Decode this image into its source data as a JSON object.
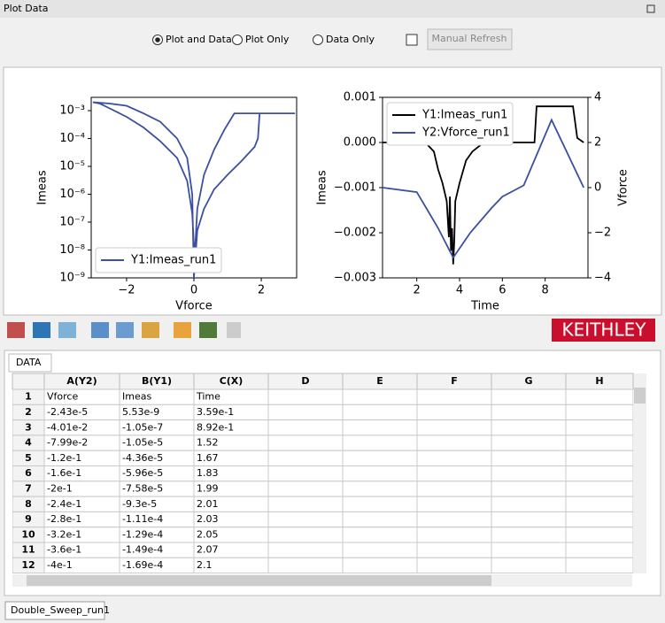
{
  "window": {
    "title": "Plot Data"
  },
  "controls": {
    "options": [
      "Plot and Data",
      "Plot Only",
      "Data Only"
    ],
    "selected_index": 0,
    "button": "Manual Refresh"
  },
  "chart_data": [
    {
      "type": "line",
      "xlabel": "Vforce",
      "ylabel": "Imeas",
      "log_y": true,
      "legend": "lower left",
      "xlim": [
        -3.05,
        3.05
      ],
      "ylim": [
        1e-09,
        0.003
      ],
      "xticks": [
        {
          "value": -2,
          "label": "−2"
        },
        0,
        2
      ],
      "yticks": [
        {
          "value": 1e-09,
          "label": "10⁻⁹"
        },
        {
          "value": 1e-08,
          "label": "10⁻⁸"
        },
        {
          "value": 1e-07,
          "label": "10⁻⁷"
        },
        {
          "value": 1e-06,
          "label": "10⁻⁶"
        },
        {
          "value": 1e-05,
          "label": "10⁻⁵"
        },
        {
          "value": 0.0001,
          "label": "10⁻⁴"
        },
        {
          "value": 0.001,
          "label": "10⁻³"
        }
      ],
      "series": [
        {
          "name": "Y1:Imeas_run1",
          "color": "#3c4fa0",
          "x": [
            0.0,
            0.1,
            0.3,
            0.6,
            1.0,
            1.4,
            1.8,
            1.9,
            1.95,
            2.5,
            3.0,
            2.5,
            1.5,
            1.2,
            0.9,
            0.6,
            0.3,
            0.1,
            0.02,
            -0.05,
            -0.2,
            -0.5,
            -1,
            -1.5,
            -2,
            -2.5,
            -2.8,
            -3,
            -2.5,
            -2,
            -1.5,
            -1,
            -0.5,
            -0.2,
            -0.05,
            0
          ],
          "values": [
            1e-09,
            5e-08,
            3e-07,
            1.5e-06,
            5e-06,
            1.5e-05,
            5e-05,
            0.0001,
            0.0008,
            0.0008,
            0.0008,
            0.0008,
            0.0008,
            0.0008,
            0.0002,
            4e-05,
            5e-06,
            3e-07,
            5e-09,
            2e-07,
            3e-06,
            2e-05,
            8e-05,
            0.00025,
            0.0006,
            0.0012,
            0.0018,
            0.002,
            0.0018,
            0.0015,
            0.0008,
            0.0004,
            0.0001,
            2e-05,
            1e-06,
            1e-09
          ]
        }
      ]
    },
    {
      "type": "line",
      "xlabel": "Time",
      "ylabel": "Imeas",
      "y2label": "Vforce",
      "legend": "upper left",
      "xlim": [
        0.4,
        10
      ],
      "ylim": [
        -0.003,
        0.001
      ],
      "y2lim": [
        -4,
        4
      ],
      "xticks": [
        2,
        4,
        6,
        8
      ],
      "yticks": [
        {
          "value": -0.003,
          "label": "−0.003"
        },
        {
          "value": -0.002,
          "label": "−0.002"
        },
        {
          "value": -0.001,
          "label": "−0.001"
        },
        {
          "value": 0,
          "label": "0.000"
        },
        0.001
      ],
      "y2ticks": [
        {
          "value": -4,
          "label": "−4"
        },
        {
          "value": -2,
          "label": "−2"
        },
        0,
        2,
        4
      ],
      "series": [
        {
          "name": "Y1:Imeas_run1",
          "color": "#000000",
          "x": [
            0.4,
            1,
            2,
            2.5,
            2.8,
            3.0,
            3.2,
            3.4,
            3.5,
            3.55,
            3.6,
            3.65,
            3.7,
            3.75,
            3.8,
            4.0,
            4.3,
            4.6,
            5.0,
            5.3,
            6,
            7,
            7.5,
            7.6,
            8,
            9,
            9.3,
            9.5,
            9.8
          ],
          "values": [
            0,
            0,
            0,
            -5e-05,
            -0.0002,
            -0.0006,
            -0.0009,
            -0.0013,
            -0.0021,
            -0.0012,
            -0.0024,
            -0.0019,
            -0.0027,
            -0.0022,
            -0.0013,
            -0.0009,
            -0.0004,
            -0.0002,
            -5e-05,
            0,
            0,
            0,
            0,
            0.0008,
            0.0008,
            0.0008,
            0.0008,
            0.0001,
            0
          ]
        },
        {
          "name": "Y2:Vforce_run1",
          "color": "#3c4fa0",
          "axis": "y2",
          "x": [
            0.4,
            2,
            2.5,
            3,
            3.7,
            4.5,
            5.5,
            6,
            6.8,
            7,
            8.3,
            9.8
          ],
          "values": [
            0,
            -0.2,
            -1,
            -1.8,
            -3.1,
            -2,
            -0.9,
            -0.4,
            0,
            0.1,
            3,
            0
          ]
        }
      ]
    }
  ],
  "brand": "KEITHLEY",
  "table": {
    "tab": "DATA",
    "columns": [
      "A(Y2)",
      "B(Y1)",
      "C(X)",
      "D",
      "E",
      "F",
      "G",
      "H"
    ],
    "rows": [
      [
        "1",
        "Vforce",
        "Imeas",
        "Time"
      ],
      [
        "2",
        "-2.43e-5",
        "5.53e-9",
        "3.59e-1"
      ],
      [
        "3",
        "-4.01e-2",
        "-1.05e-7",
        "8.92e-1"
      ],
      [
        "4",
        "-7.99e-2",
        "-1.05e-5",
        "1.52"
      ],
      [
        "5",
        "-1.2e-1",
        "-4.36e-5",
        "1.67"
      ],
      [
        "6",
        "-1.6e-1",
        "-5.96e-5",
        "1.83"
      ],
      [
        "7",
        "-2e-1",
        "-7.58e-5",
        "1.99"
      ],
      [
        "8",
        "-2.4e-1",
        "-9.3e-5",
        "2.01"
      ],
      [
        "9",
        "-2.8e-1",
        "-1.11e-4",
        "2.03"
      ],
      [
        "10",
        "-3.2e-1",
        "-1.29e-4",
        "2.05"
      ],
      [
        "11",
        "-3.6e-1",
        "-1.49e-4",
        "2.07"
      ],
      [
        "12",
        "-4e-1",
        "-1.69e-4",
        "2.1"
      ]
    ]
  },
  "sheet_tab": "Double_Sweep_run1"
}
